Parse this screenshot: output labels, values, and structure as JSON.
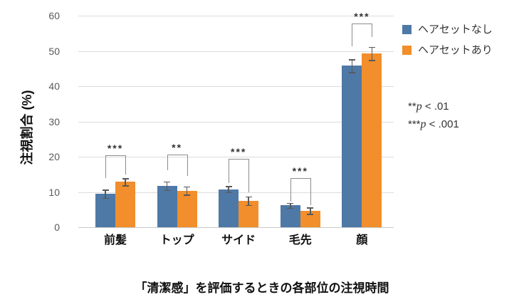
{
  "chart_data": {
    "type": "bar",
    "title": "「清潔感」を評価するときの各部位の注視時間",
    "ylabel": "注視割合 (%)",
    "ylim": [
      0,
      60
    ],
    "yticks": [
      0,
      10,
      20,
      30,
      40,
      50,
      60
    ],
    "categories": [
      "前髪",
      "トップ",
      "サイド",
      "毛先",
      "顔"
    ],
    "series": [
      {
        "name": "ヘアセットなし",
        "color": "#4E79A7",
        "values": [
          9.5,
          11.8,
          10.8,
          6.2,
          45.8
        ],
        "errors": [
          1.2,
          1.2,
          0.9,
          0.7,
          1.8
        ]
      },
      {
        "name": "ヘアセットあり",
        "color": "#F28E2B",
        "values": [
          12.9,
          10.4,
          7.5,
          4.7,
          49.3
        ],
        "errors": [
          1.0,
          1.2,
          1.2,
          0.9,
          1.9
        ]
      }
    ],
    "significance": [
      "***",
      "**",
      "***",
      "***",
      "***"
    ],
    "notes": [
      {
        "stars": "**",
        "symbol": "p",
        "text": " < .01"
      },
      {
        "stars": "***",
        "symbol": "p",
        "text": " < .001"
      }
    ],
    "legend_position": "right",
    "grid": true
  }
}
